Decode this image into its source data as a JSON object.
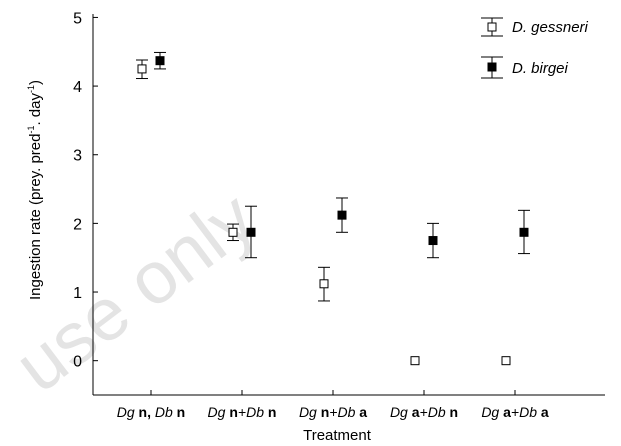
{
  "chart_data": {
    "type": "scatter",
    "xlabel": "Treatment",
    "ylabel_main": "Ingestion rate (prey. pred",
    "ylabel_mid": ". day",
    "ylabel_end": ")",
    "ylabel_sup": "-1",
    "ylim": [
      -0.5,
      5.05
    ],
    "yticks": [
      "0",
      "1",
      "2",
      "3",
      "4",
      "5"
    ],
    "ytick_values": [
      0,
      1,
      2,
      3,
      4,
      5
    ],
    "grid": false,
    "legend_position": "top-right",
    "categories": [
      {
        "p1": "Dg",
        "p2": " n, ",
        "p3": "Db",
        "p4": " n"
      },
      {
        "p1": "Dg",
        "p2": " n",
        "p3": "+Db",
        "p4": " n"
      },
      {
        "p1": "Dg",
        "p2": " n",
        "p3": "+Db",
        "p4": " a"
      },
      {
        "p1": "Dg",
        "p2": " a",
        "p3": "+Db",
        "p4": " n"
      },
      {
        "p1": "Dg",
        "p2": " a",
        "p3": "+Db",
        "p4": " a"
      }
    ],
    "series": [
      {
        "name": "D. gessneri",
        "marker": "open-square",
        "values": [
          4.25,
          1.87,
          1.12,
          0.0,
          0.0
        ],
        "err_low": [
          0.14,
          0.12,
          0.25,
          null,
          null
        ],
        "err_high": [
          0.13,
          0.12,
          0.24,
          null,
          null
        ]
      },
      {
        "name": "D. birgei",
        "marker": "filled-square",
        "values": [
          4.37,
          1.87,
          2.12,
          1.75,
          1.87
        ],
        "err_low": [
          0.12,
          0.37,
          0.25,
          0.25,
          0.31
        ],
        "err_high": [
          0.12,
          0.38,
          0.25,
          0.25,
          0.32
        ]
      }
    ]
  },
  "watermark": "use only"
}
